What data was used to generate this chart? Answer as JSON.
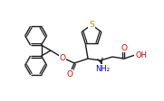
{
  "bg_color": "#ffffff",
  "bond_color": "#1a1a1a",
  "atom_colors": {
    "O": "#cc0000",
    "N": "#0000cc",
    "S": "#999900",
    "C": "#1a1a1a"
  },
  "lw": 1.0,
  "figsize": [
    1.81,
    1.12
  ],
  "dpi": 100
}
